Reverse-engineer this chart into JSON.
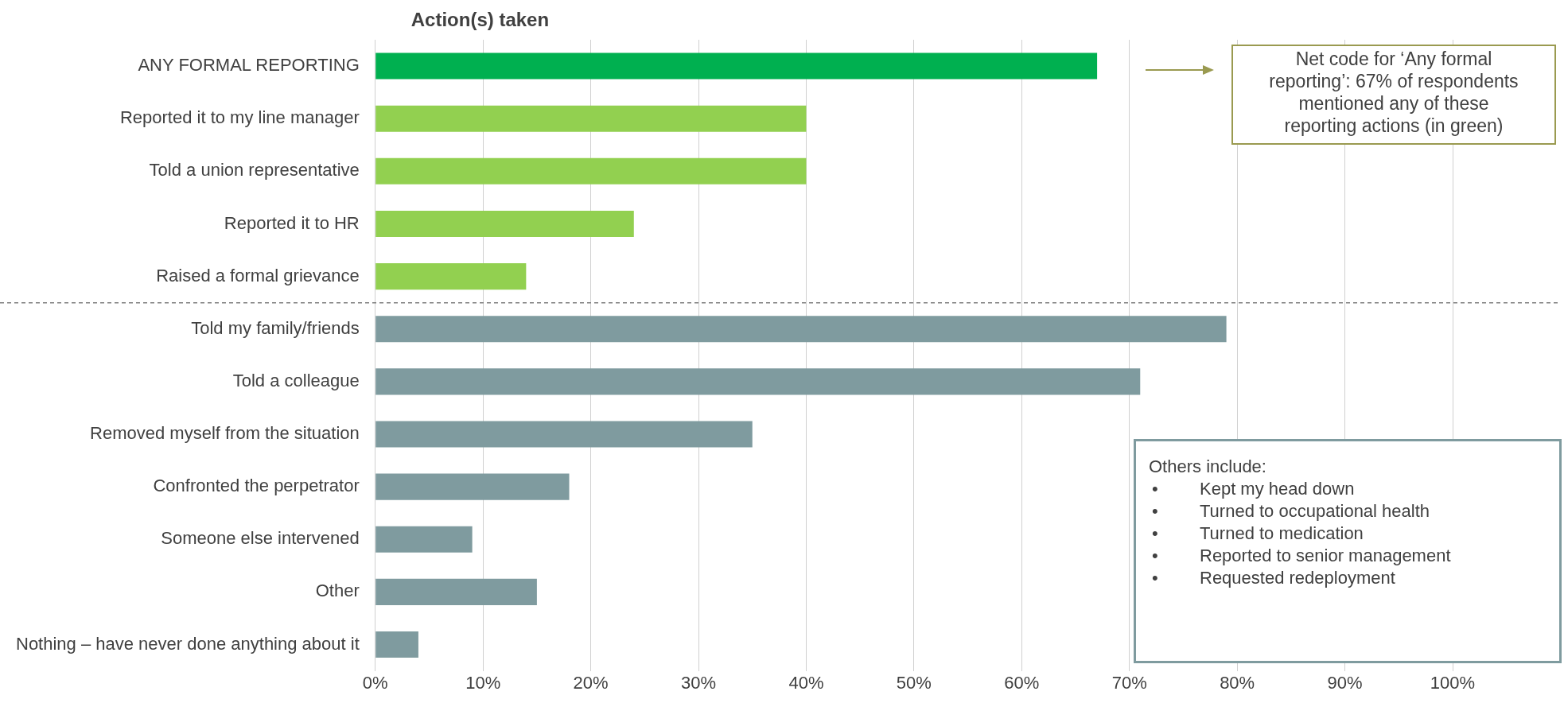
{
  "chart_data": {
    "type": "bar",
    "orientation": "horizontal",
    "title": "Action(s) taken",
    "categories": [
      "ANY FORMAL REPORTING",
      "Reported it to my line manager",
      "Told a union representative",
      "Reported it to HR",
      "Raised a formal grievance",
      "Told my family/friends",
      "Told a colleague",
      "Removed myself from the situation",
      "Confronted the perpetrator",
      "Someone else intervened",
      "Other",
      "Nothing – have never done anything about it"
    ],
    "values": [
      67,
      40,
      40,
      24,
      14,
      79,
      71,
      35,
      18,
      9,
      15,
      4
    ],
    "colors": [
      "#00b050",
      "#92d050",
      "#92d050",
      "#92d050",
      "#92d050",
      "#7f9b9f",
      "#7f9b9f",
      "#7f9b9f",
      "#7f9b9f",
      "#7f9b9f",
      "#7f9b9f",
      "#7f9b9f"
    ],
    "xlim": [
      0,
      100
    ],
    "xticks": [
      {
        "value": 0,
        "label": "0%"
      },
      {
        "value": 10,
        "label": "10%"
      },
      {
        "value": 20,
        "label": "20%"
      },
      {
        "value": 30,
        "label": "30%"
      },
      {
        "value": 40,
        "label": "40%"
      },
      {
        "value": 50,
        "label": "50%"
      },
      {
        "value": 60,
        "label": "60%"
      },
      {
        "value": 70,
        "label": "70%"
      },
      {
        "value": 80,
        "label": "80%"
      },
      {
        "value": 90,
        "label": "90%"
      },
      {
        "value": 100,
        "label": "100%"
      }
    ],
    "grid": "x",
    "legend": false,
    "annotations": [
      "Net code for ‘Any formal reporting’: 67% of respondents mentioned any of these reporting actions (in green)",
      "Others include:\n•\tKept my head down\n•\tTurned to occupational health\n•\tTurned to medication\n•\tReported to senior management\n•\tRequested redeployment"
    ]
  }
}
